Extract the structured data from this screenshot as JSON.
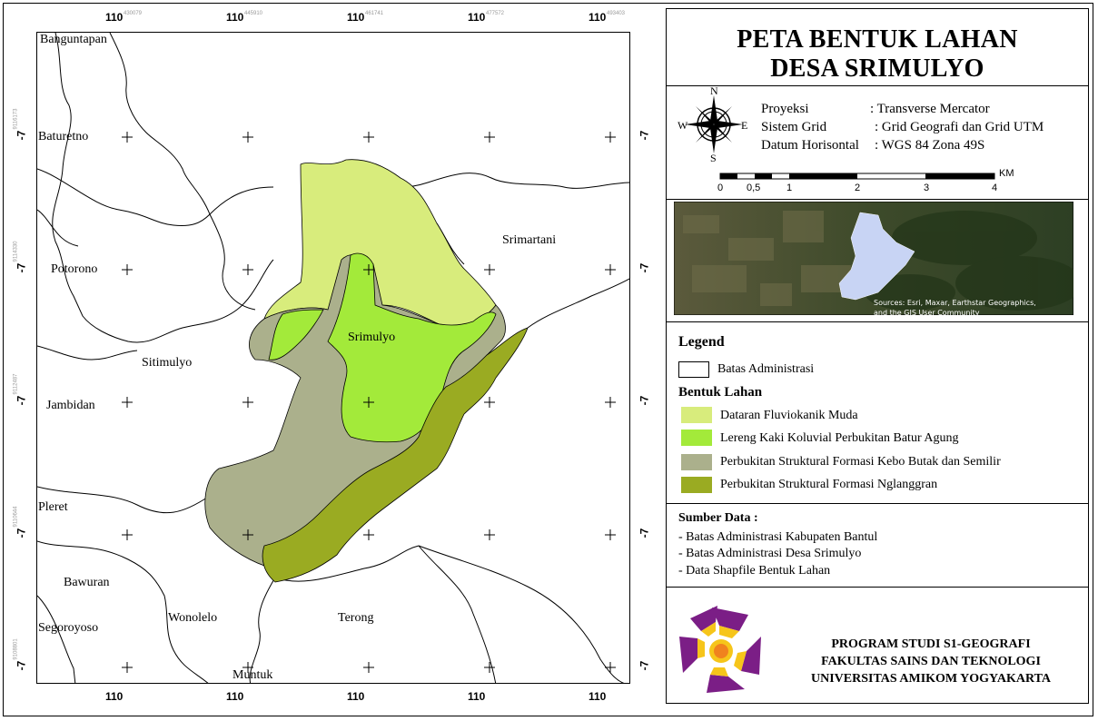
{
  "map": {
    "grid_top_labels": [
      "110",
      "110",
      "110",
      "110",
      "110"
    ],
    "grid_bottom_labels": [
      "110",
      "110",
      "110",
      "110",
      "110"
    ],
    "grid_top_small": [
      "430079",
      "445910",
      "461741",
      "477572",
      "493403"
    ],
    "grid_left_labels": [
      "-7",
      "-7",
      "-7",
      "-7",
      "-7"
    ],
    "grid_right_labels": [
      "-7",
      "-7",
      "-7",
      "-7",
      "-7"
    ],
    "grid_left_small": [
      "9116173",
      "9114330",
      "9112487",
      "9110644",
      "9108801"
    ],
    "places": {
      "banguntapan": "Banguntapan",
      "baturetno": "Baturetno",
      "potorono": "Potorono",
      "srimartani": "Srimartani",
      "sitimulyo": "Sitimulyo",
      "srimulyo": "Srimulyo",
      "jambidan": "Jambidan",
      "pleret": "Pleret",
      "bawuran": "Bawuran",
      "segoroyoso": "Segoroyoso",
      "wonolelo": "Wonolelo",
      "terong": "Terong",
      "muntuk": "Muntuk"
    },
    "colors": {
      "fluviokanik": "#d8ec7c",
      "koluvial": "#a3ea3a",
      "kebo_butak": "#abb08c",
      "nglanggran": "#9aab22"
    }
  },
  "panel": {
    "title_line1": "PETA BENTUK LAHAN",
    "title_line2": "DESA SRIMULYO",
    "compass": {
      "n": "N",
      "s": "S",
      "e": "E",
      "w": "W"
    },
    "projection": {
      "label1": "Proyeksi",
      "value1": ": Transverse Mercator",
      "label2": "Sistem Grid",
      "value2": ": Grid Geografi dan Grid UTM",
      "label3": "Datum Horisontal",
      "value3": ": WGS 84 Zona 49S"
    },
    "scale": {
      "unit": "KM",
      "ticks": [
        "0",
        "0,5",
        "1",
        "2",
        "3",
        "4"
      ]
    },
    "inset": {
      "attribution_line1": "Sources: Esri, Maxar, Earthstar Geographics,",
      "attribution_line2": "and the GIS User Community"
    },
    "legend": {
      "title": "Legend",
      "admin_label": "Batas Administrasi",
      "landform_title": "Bentuk Lahan",
      "items": [
        "Dataran Fluviokanik Muda",
        "Lereng Kaki Koluvial Perbukitan Batur Agung",
        "Perbukitan Struktural Formasi Kebo Butak dan Semilir",
        "Perbukitan Struktural Formasi Nglanggran"
      ]
    },
    "sources": {
      "title": "Sumber Data :",
      "items": [
        "- Batas Administrasi Kabupaten Bantul",
        "- Batas Administrasi Desa Srimulyo",
        "- Data Shapfile Bentuk Lahan"
      ]
    },
    "footer": {
      "line1": "PROGRAM STUDI S1-GEOGRAFI",
      "line2": "FAKULTAS SAINS DAN TEKNOLOGI",
      "line3": "UNIVERSITAS AMIKOM YOGYAKARTA"
    }
  }
}
